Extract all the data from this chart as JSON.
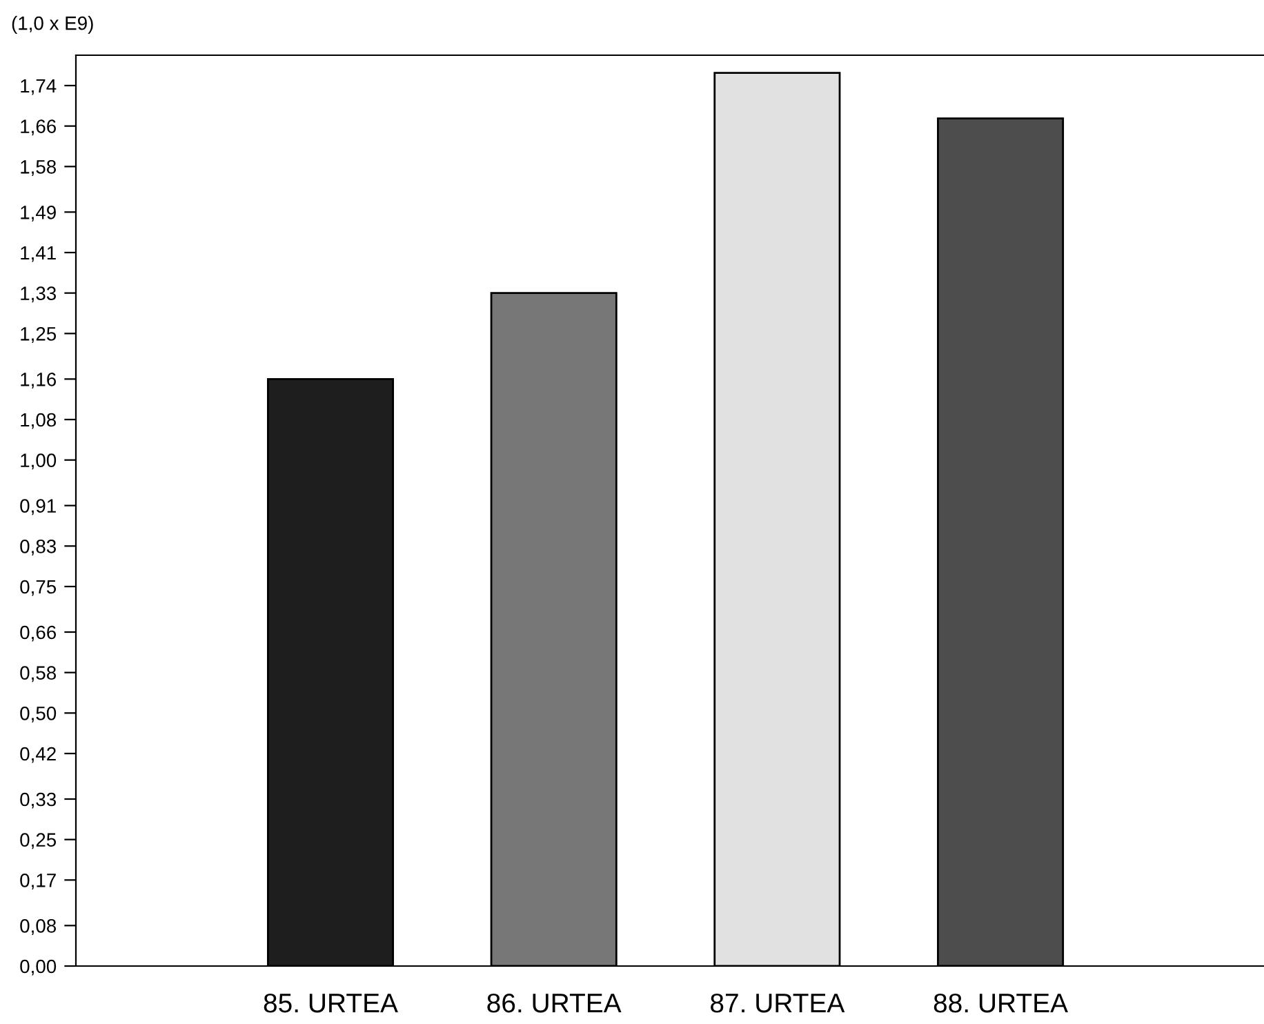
{
  "chart_data": {
    "type": "bar",
    "ylabel": "(1,0 x E9)",
    "categories": [
      "85. URTEA",
      "86. URTEA",
      "87. URTEA",
      "88. URTEA"
    ],
    "values": [
      1.16,
      1.33,
      1.765,
      1.675
    ],
    "colors": [
      "#1e1e1e",
      "#777777",
      "#e1e1e1",
      "#4d4d4d"
    ],
    "ylim": [
      0,
      1.8
    ],
    "yticks": [
      {
        "value": 0,
        "label": "0,00"
      },
      {
        "value": 0.08,
        "label": "0,08"
      },
      {
        "value": 0.17,
        "label": "0,17"
      },
      {
        "value": 0.25,
        "label": "0,25"
      },
      {
        "value": 0.33,
        "label": "0,33"
      },
      {
        "value": 0.42,
        "label": "0,42"
      },
      {
        "value": 0.5,
        "label": "0,50"
      },
      {
        "value": 0.58,
        "label": "0,58"
      },
      {
        "value": 0.66,
        "label": "0,66"
      },
      {
        "value": 0.75,
        "label": "0,75"
      },
      {
        "value": 0.83,
        "label": "0,83"
      },
      {
        "value": 0.91,
        "label": "0,91"
      },
      {
        "value": 1.0,
        "label": "1,00"
      },
      {
        "value": 1.08,
        "label": "1,08"
      },
      {
        "value": 1.16,
        "label": "1,16"
      },
      {
        "value": 1.25,
        "label": "1,25"
      },
      {
        "value": 1.33,
        "label": "1,33"
      },
      {
        "value": 1.41,
        "label": "1,41"
      },
      {
        "value": 1.49,
        "label": "1,49"
      },
      {
        "value": 1.58,
        "label": "1,58"
      },
      {
        "value": 1.66,
        "label": "1,66"
      },
      {
        "value": 1.74,
        "label": "1,74"
      }
    ],
    "grid": false,
    "legend": false
  }
}
